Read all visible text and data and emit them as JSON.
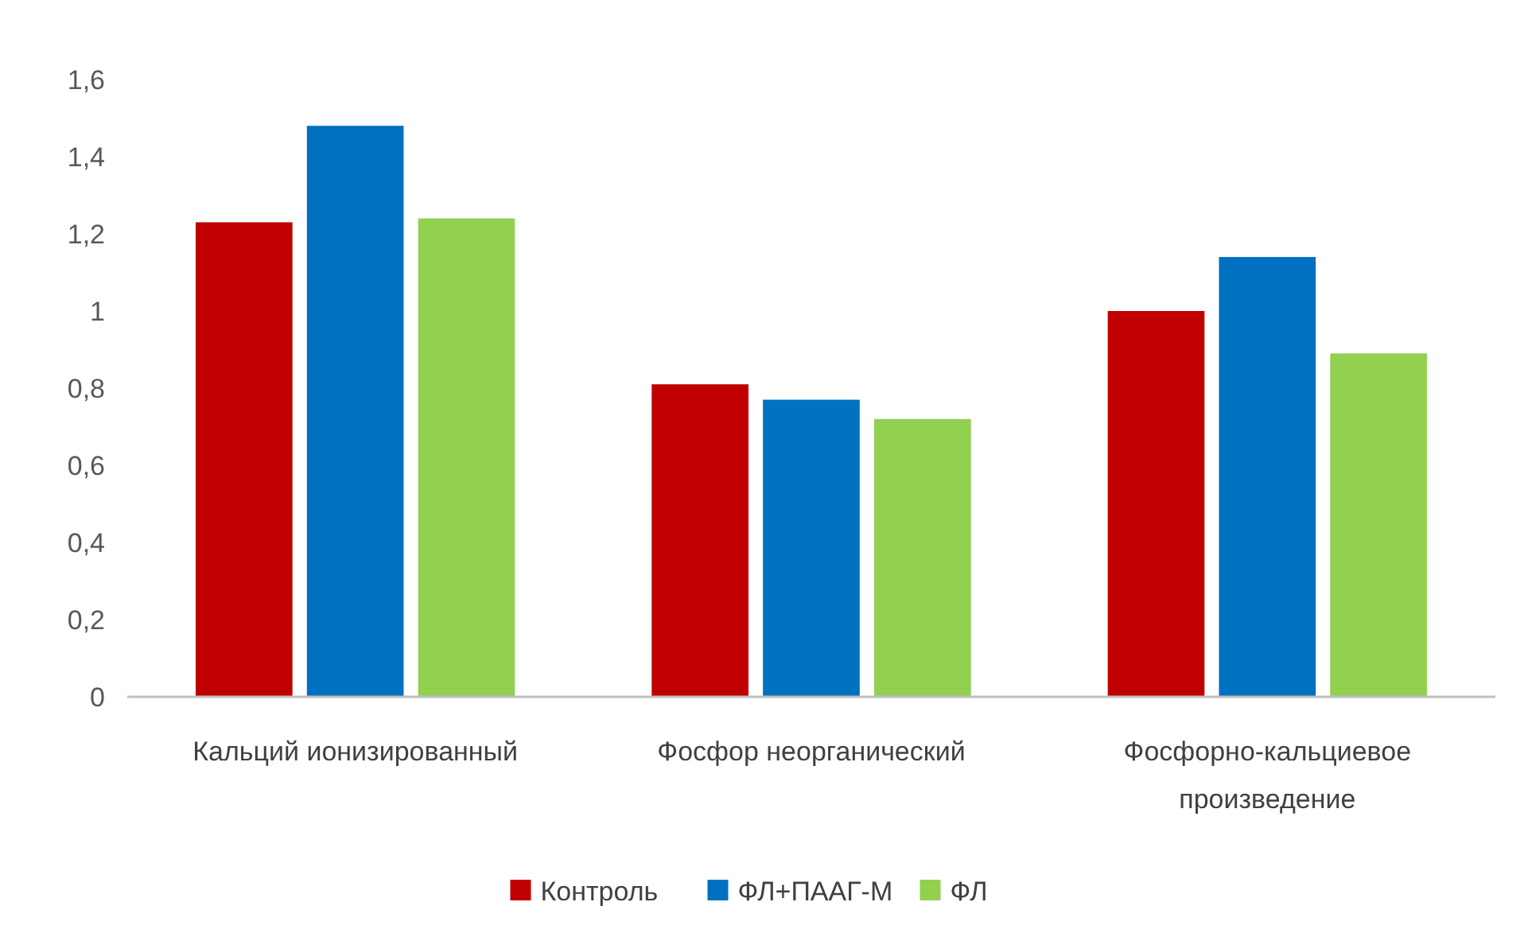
{
  "chart_data": {
    "type": "bar",
    "categories": [
      "Кальций ионизированный",
      "Фосфор неорганический",
      "Фосфорно-кальциевое произведение"
    ],
    "series": [
      {
        "name": "Контроль",
        "color": "#c00000",
        "values": [
          1.23,
          0.81,
          1.0
        ]
      },
      {
        "name": "ФЛ+ПААГ-М",
        "color": "#0070c0",
        "values": [
          1.48,
          0.77,
          1.14
        ]
      },
      {
        "name": "ФЛ",
        "color": "#92d050",
        "values": [
          1.24,
          0.72,
          0.89
        ]
      }
    ],
    "ylim": [
      0,
      1.6
    ],
    "yticks": [
      0,
      {
        "value": 0.2,
        "label": "0,2"
      },
      {
        "value": 0.4,
        "label": "0,4"
      },
      {
        "value": 0.6,
        "label": "0,6"
      },
      {
        "value": 0.8,
        "label": "0,8"
      },
      1,
      {
        "value": 1.2,
        "label": "1,2"
      },
      {
        "value": 1.4,
        "label": "1,4"
      },
      {
        "value": 1.6,
        "label": "1,6"
      }
    ],
    "grid": false,
    "legend": "bottom"
  }
}
